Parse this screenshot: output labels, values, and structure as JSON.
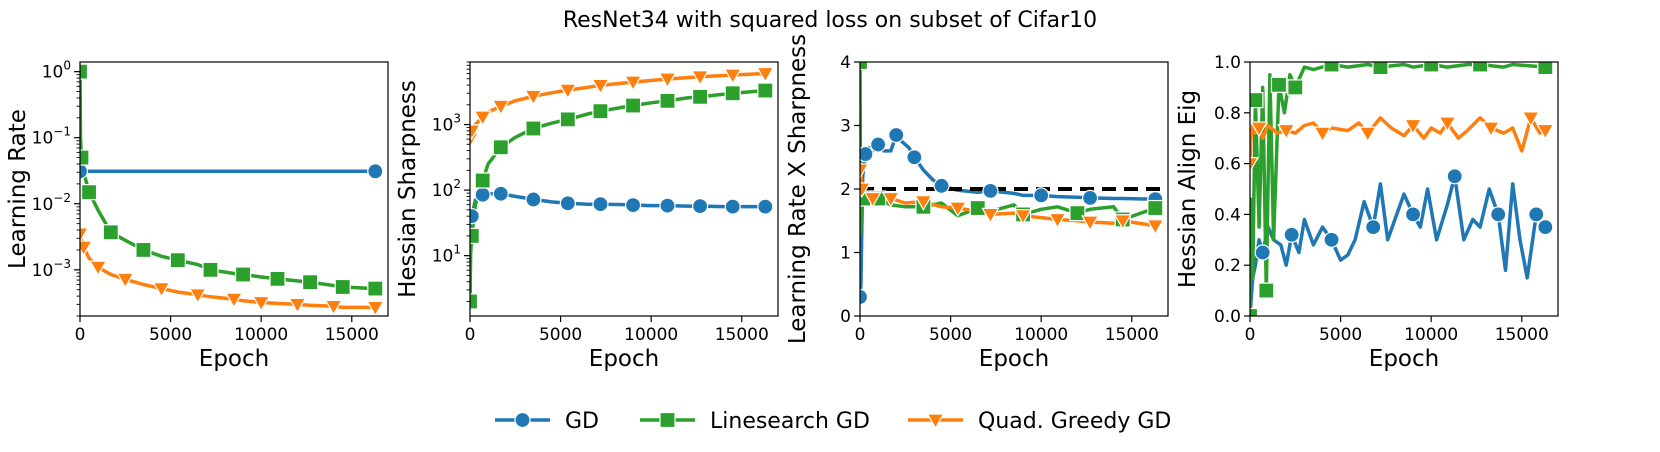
{
  "chart_data": {
    "title": "ResNet34 with squared loss on subset of Cifar10",
    "legend": [
      {
        "name": "GD",
        "color": "#1f77b4",
        "marker": "circle"
      },
      {
        "name": "Linesearch GD",
        "color": "#2ca02c",
        "marker": "square"
      },
      {
        "name": "Quad. Greedy GD",
        "color": "#ff7f0e",
        "marker": "triangle-down"
      }
    ],
    "panels": [
      {
        "type": "line",
        "xlabel": "Epoch",
        "ylabel": "Learning Rate",
        "yscale": "log",
        "xlim": [
          0,
          17000
        ],
        "ylim": [
          0.0002,
          1.4
        ],
        "xticks": [
          0,
          5000,
          10000,
          15000
        ],
        "xtick_labels": [
          "0",
          "5000",
          "10000",
          "15000"
        ],
        "yticks": [
          1,
          0.1,
          0.01,
          0.001
        ],
        "ytick_labels": [
          "10^0",
          "10^−1",
          "10^−2",
          "10^−3"
        ],
        "series": [
          {
            "name": "GD",
            "x": [
              0,
              16300
            ],
            "y": [
              0.031,
              0.031
            ]
          },
          {
            "name": "Linesearch GD",
            "x": [
              0,
              30,
              80,
              200,
              500,
              1000,
              1700,
              2500,
              3500,
              4500,
              5400,
              6500,
              7200,
              8500,
              9000,
              10000,
              10900,
              12000,
              12700,
              14000,
              14500,
              16300
            ],
            "y": [
              1.0,
              0.1,
              0.05,
              0.03,
              0.015,
              0.008,
              0.0037,
              0.0028,
              0.002,
              0.0016,
              0.0014,
              0.0012,
              0.001,
              0.00088,
              0.00085,
              0.00078,
              0.00073,
              0.00068,
              0.00065,
              0.00058,
              0.00055,
              0.00052
            ]
          },
          {
            "name": "Quad. Greedy GD",
            "x": [
              0,
              30,
              200,
              500,
              1000,
              1700,
              2500,
              3500,
              4500,
              5400,
              6500,
              7200,
              8500,
              9000,
              10000,
              10900,
              12000,
              12700,
              14000,
              14500,
              16300
            ],
            "y": [
              0.0035,
              0.0032,
              0.0022,
              0.0015,
              0.0011,
              0.00085,
              0.00072,
              0.0006,
              0.00052,
              0.00046,
              0.00042,
              0.00039,
              0.00036,
              0.00034,
              0.00032,
              0.00031,
              0.0003,
              0.00029,
              0.00028,
              0.00027,
              0.00027
            ]
          }
        ]
      },
      {
        "type": "line",
        "xlabel": "Epoch",
        "ylabel": "Hessian Sharpness",
        "yscale": "log",
        "xlim": [
          0,
          17000
        ],
        "ylim": [
          1.2,
          9000
        ],
        "xticks": [
          0,
          5000,
          10000,
          15000
        ],
        "xtick_labels": [
          "0",
          "5000",
          "10000",
          "15000"
        ],
        "yticks": [
          10,
          100,
          1000
        ],
        "ytick_labels": [
          "10^1",
          "10^2",
          "10^3"
        ],
        "series": [
          {
            "name": "GD",
            "x": [
              0,
              30,
              100,
              300,
              700,
              1000,
              1700,
              2500,
              3500,
              4500,
              5400,
              6500,
              7200,
              8500,
              9000,
              10000,
              10900,
              12000,
              12700,
              14000,
              14500,
              16300
            ],
            "y": [
              2,
              12,
              40,
              70,
              85,
              88,
              88,
              80,
              72,
              66,
              63,
              61,
              61,
              60,
              59,
              58,
              58,
              57,
              57,
              56,
              56,
              56
            ]
          },
          {
            "name": "Linesearch GD",
            "x": [
              0,
              30,
              100,
              300,
              700,
              1000,
              1700,
              2500,
              3500,
              4500,
              5400,
              6500,
              7200,
              8500,
              9000,
              10000,
              10900,
              12000,
              12700,
              14000,
              14500,
              16300
            ],
            "y": [
              2,
              10,
              20,
              60,
              140,
              250,
              450,
              640,
              870,
              1050,
              1200,
              1450,
              1600,
              1850,
              1950,
              2150,
              2300,
              2550,
              2650,
              2900,
              3000,
              3300
            ]
          },
          {
            "name": "Quad. Greedy GD",
            "x": [
              0,
              30,
              100,
              300,
              700,
              1000,
              1700,
              2500,
              3500,
              4500,
              5400,
              6500,
              7200,
              8500,
              9000,
              10000,
              10900,
              12000,
              12700,
              14000,
              14500,
              16300
            ],
            "y": [
              600,
              700,
              800,
              1000,
              1300,
              1550,
              1900,
              2300,
              2700,
              3050,
              3350,
              3700,
              3950,
              4300,
              4450,
              4700,
              4950,
              5200,
              5350,
              5600,
              5700,
              6000
            ]
          }
        ]
      },
      {
        "type": "line",
        "xlabel": "Epoch",
        "ylabel": "Learning Rate X Sharpness",
        "yscale": "linear",
        "xlim": [
          0,
          17000
        ],
        "ylim": [
          0,
          4
        ],
        "xticks": [
          0,
          5000,
          10000,
          15000
        ],
        "xtick_labels": [
          "0",
          "5000",
          "10000",
          "15000"
        ],
        "yticks": [
          0,
          1,
          2,
          3,
          4
        ],
        "ytick_labels": [
          "0",
          "1",
          "2",
          "3",
          "4"
        ],
        "reference_line": {
          "y": 2.0,
          "style": "dashed",
          "color": "#000000"
        },
        "series": [
          {
            "name": "GD",
            "x": [
              0,
              50,
              150,
              300,
              500,
              700,
              1000,
              1300,
              1700,
              2000,
              2300,
              2700,
              3000,
              3500,
              4000,
              4500,
              5400,
              6500,
              7200,
              8500,
              9000,
              10000,
              10900,
              12000,
              12700,
              14000,
              14500,
              16300
            ],
            "y": [
              0.3,
              0.5,
              2.2,
              2.55,
              2.65,
              2.6,
              2.7,
              2.6,
              2.6,
              2.85,
              2.75,
              2.65,
              2.5,
              2.3,
              2.15,
              2.05,
              1.98,
              1.95,
              1.97,
              1.93,
              1.9,
              1.9,
              1.88,
              1.87,
              1.86,
              1.85,
              1.85,
              1.84
            ]
          },
          {
            "name": "Linesearch GD",
            "x": [
              0,
              40,
              100,
              200,
              400,
              700,
              1000,
              1700,
              2500,
              3500,
              4500,
              5400,
              6500,
              7200,
              8500,
              9000,
              10000,
              10900,
              12000,
              12700,
              14000,
              14500,
              16300
            ],
            "y": [
              4.0,
              1.3,
              1.9,
              1.85,
              1.9,
              1.8,
              1.85,
              1.75,
              1.72,
              1.72,
              1.78,
              1.58,
              1.7,
              1.65,
              1.75,
              1.6,
              1.68,
              1.72,
              1.62,
              1.68,
              1.72,
              1.52,
              1.7
            ]
          },
          {
            "name": "Quad. Greedy GD",
            "x": [
              0,
              30,
              100,
              300,
              700,
              1000,
              1700,
              2500,
              3500,
              4500,
              5400,
              6500,
              7200,
              8500,
              9000,
              10000,
              10900,
              12000,
              12700,
              14000,
              14500,
              16300
            ],
            "y": [
              2.3,
              2.35,
              2.0,
              1.9,
              1.85,
              1.83,
              1.85,
              1.78,
              1.8,
              1.72,
              1.7,
              1.65,
              1.6,
              1.62,
              1.58,
              1.55,
              1.52,
              1.5,
              1.48,
              1.46,
              1.5,
              1.42
            ]
          }
        ]
      },
      {
        "type": "line",
        "xlabel": "Epoch",
        "ylabel": "Hessian Align Eig",
        "yscale": "linear",
        "xlim": [
          0,
          17000
        ],
        "ylim": [
          0,
          1
        ],
        "xticks": [
          0,
          5000,
          10000,
          15000
        ],
        "xtick_labels": [
          "0",
          "5000",
          "10000",
          "15000"
        ],
        "yticks": [
          0,
          0.2,
          0.4,
          0.6,
          0.8,
          1.0
        ],
        "ytick_labels": [
          "0.0",
          "0.2",
          "0.4",
          "0.6",
          "0.8",
          "1.0"
        ],
        "series": [
          {
            "name": "GD",
            "x": [
              0,
              50,
              150,
              300,
              500,
              700,
              1000,
              1300,
              1700,
              2000,
              2300,
              2700,
              3000,
              3500,
              4000,
              4500,
              5000,
              5400,
              5800,
              6300,
              6800,
              7200,
              7600,
              8000,
              8500,
              9000,
              9400,
              9800,
              10300,
              10900,
              11300,
              11800,
              12300,
              12700,
              13200,
              13700,
              14100,
              14500,
              14900,
              15300,
              15800,
              16300
            ],
            "y": [
              0.0,
              0.05,
              0.15,
              0.2,
              0.3,
              0.25,
              0.35,
              0.3,
              0.28,
              0.2,
              0.32,
              0.25,
              0.38,
              0.28,
              0.35,
              0.3,
              0.22,
              0.24,
              0.3,
              0.45,
              0.35,
              0.52,
              0.3,
              0.38,
              0.48,
              0.4,
              0.35,
              0.5,
              0.3,
              0.44,
              0.55,
              0.3,
              0.38,
              0.35,
              0.5,
              0.4,
              0.18,
              0.52,
              0.3,
              0.15,
              0.4,
              0.35
            ]
          },
          {
            "name": "Linesearch GD",
            "x": [
              0,
              50,
              150,
              300,
              500,
              700,
              900,
              1100,
              1300,
              1600,
              1900,
              2200,
              2500,
              3000,
              3500,
              4500,
              5400,
              6500,
              7200,
              8500,
              9000,
              10000,
              10900,
              12000,
              12700,
              14000,
              14500,
              16300
            ],
            "y": [
              0.0,
              0.46,
              0.15,
              0.85,
              0.35,
              0.9,
              0.1,
              0.95,
              0.3,
              0.91,
              0.8,
              0.95,
              0.9,
              0.98,
              0.97,
              0.99,
              0.98,
              0.99,
              0.98,
              0.99,
              0.98,
              0.99,
              0.98,
              0.99,
              0.99,
              0.98,
              0.99,
              0.98
            ]
          },
          {
            "name": "Quad. Greedy GD",
            "x": [
              0,
              50,
              150,
              300,
              500,
              700,
              1000,
              1500,
              2000,
              2500,
              3000,
              3500,
              4000,
              4500,
              5400,
              6000,
              6500,
              7200,
              7800,
              8500,
              9000,
              9600,
              10000,
              10500,
              10900,
              11500,
              12000,
              12700,
              13300,
              14000,
              14500,
              15000,
              15500,
              16000,
              16300
            ],
            "y": [
              0.6,
              0.7,
              0.75,
              0.72,
              0.74,
              0.7,
              0.75,
              0.72,
              0.73,
              0.72,
              0.75,
              0.76,
              0.72,
              0.74,
              0.73,
              0.76,
              0.72,
              0.78,
              0.74,
              0.71,
              0.75,
              0.7,
              0.74,
              0.72,
              0.76,
              0.7,
              0.73,
              0.78,
              0.74,
              0.72,
              0.74,
              0.65,
              0.78,
              0.72,
              0.73
            ]
          }
        ]
      }
    ]
  }
}
